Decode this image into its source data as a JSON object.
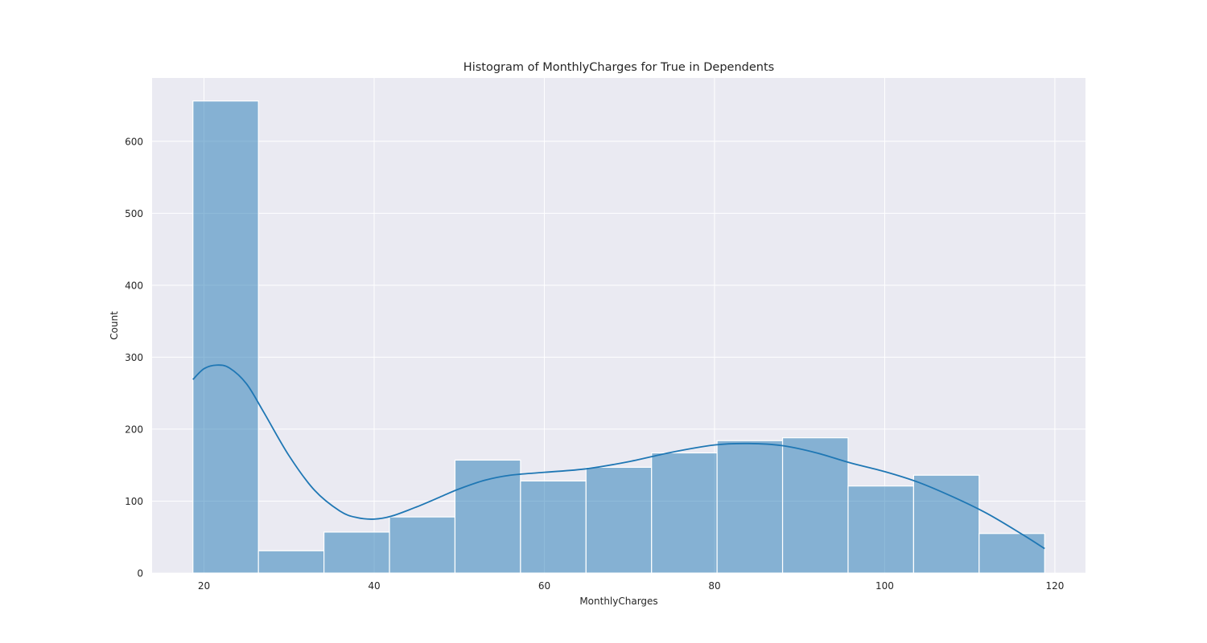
{
  "chart_data": {
    "type": "bar",
    "title": "Histogram of MonthlyCharges for True in Dependents",
    "xlabel": "MonthlyCharges",
    "ylabel": "Count",
    "xlim": [
      13.9,
      123.6
    ],
    "ylim": [
      0,
      688
    ],
    "xticks": [
      20,
      40,
      60,
      80,
      100,
      120
    ],
    "yticks": [
      0,
      100,
      200,
      300,
      400,
      500,
      600
    ],
    "grid": true,
    "bins": [
      {
        "start": 18.7,
        "end": 26.4,
        "count": 656
      },
      {
        "start": 26.4,
        "end": 34.1,
        "count": 31
      },
      {
        "start": 34.1,
        "end": 41.8,
        "count": 57
      },
      {
        "start": 41.8,
        "end": 49.5,
        "count": 78
      },
      {
        "start": 49.5,
        "end": 57.2,
        "count": 157
      },
      {
        "start": 57.2,
        "end": 64.9,
        "count": 128
      },
      {
        "start": 64.9,
        "end": 72.6,
        "count": 147
      },
      {
        "start": 72.6,
        "end": 80.3,
        "count": 167
      },
      {
        "start": 80.3,
        "end": 88.0,
        "count": 184
      },
      {
        "start": 88.0,
        "end": 95.7,
        "count": 188
      },
      {
        "start": 95.7,
        "end": 103.4,
        "count": 121
      },
      {
        "start": 103.4,
        "end": 111.1,
        "count": 136
      },
      {
        "start": 111.1,
        "end": 118.8,
        "count": 55
      }
    ],
    "kde": {
      "x": [
        18.7,
        20,
        21.5,
        23,
        25,
        27,
        30,
        33,
        36,
        38,
        40,
        42,
        45,
        48,
        50,
        53,
        56,
        60,
        65,
        70,
        75,
        80,
        84,
        88,
        92,
        96,
        100,
        104,
        108,
        112,
        116,
        118.8
      ],
      "y": [
        269,
        284,
        289,
        285,
        263,
        224,
        163,
        115,
        86,
        77,
        75,
        79,
        92,
        107,
        117,
        129,
        136,
        140,
        145,
        155,
        168,
        178,
        180,
        177,
        167,
        153,
        141,
        126,
        106,
        83,
        55,
        34
      ]
    },
    "colors": {
      "bar_fill": "#1f77b4",
      "line": "#1f77b4",
      "background": "#eaeaf2",
      "grid": "#ffffff"
    }
  }
}
